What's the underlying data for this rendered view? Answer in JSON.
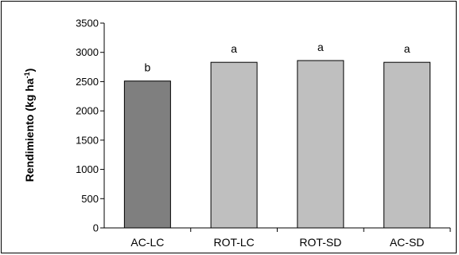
{
  "chart_data": {
    "type": "bar",
    "categories": [
      "AC-LC",
      "ROT-LC",
      "ROT-SD",
      "AC-SD"
    ],
    "values": [
      2510,
      2830,
      2860,
      2830
    ],
    "significance_labels": [
      "b",
      "a",
      "a",
      "a"
    ],
    "bar_colors": [
      "#7f7f7f",
      "#bfbfbf",
      "#bfbfbf",
      "#bfbfbf"
    ],
    "ylabel": "Rendimiento (kg ha",
    "ylabel_sup": "-1",
    "ylabel_close": ")",
    "ylim": [
      0,
      3500
    ],
    "yticks": [
      "0",
      "500",
      "1000",
      "1500",
      "2000",
      "2500",
      "3000",
      "3500"
    ],
    "grid": false
  }
}
